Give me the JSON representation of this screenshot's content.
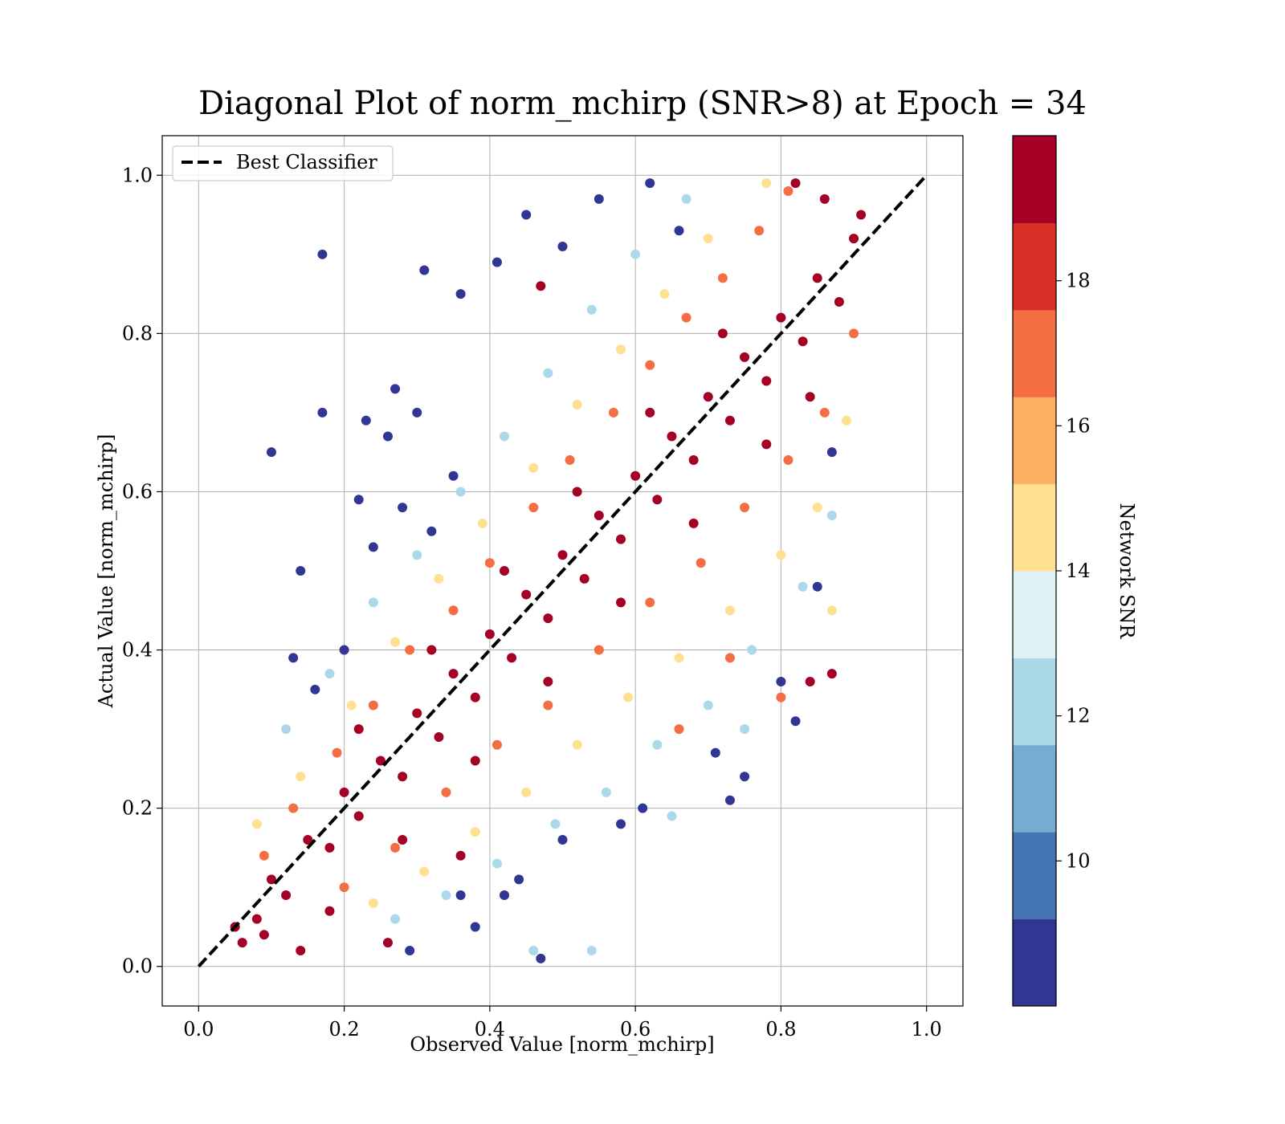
{
  "chart_data": {
    "type": "scatter",
    "title": "Diagonal Plot of norm_mchirp (SNR>8) at Epoch = 34",
    "xlabel": "Observed Value [norm_mchirp]",
    "ylabel": "Actual Value [norm_mchirp]",
    "xlim": [
      -0.05,
      1.05
    ],
    "ylim": [
      -0.05,
      1.05
    ],
    "xticks": [
      "0.0",
      "0.2",
      "0.4",
      "0.6",
      "0.8",
      "1.0"
    ],
    "yticks": [
      "0.0",
      "0.2",
      "0.4",
      "0.6",
      "0.8",
      "1.0"
    ],
    "grid": true,
    "legend": {
      "position": "upper-left",
      "entries": [
        "Best Classifier"
      ]
    },
    "reference_line": {
      "name": "Best Classifier",
      "style": "dashed",
      "color": "#000000",
      "x": [
        0,
        1
      ],
      "y": [
        0,
        1
      ]
    },
    "colorbar": {
      "label": "Network SNR",
      "ticks": [
        "10",
        "12",
        "14",
        "16",
        "18"
      ],
      "tick_values": [
        10,
        12,
        14,
        16,
        18
      ],
      "range": [
        8,
        20
      ],
      "colors": [
        "#313695",
        "#4575b4",
        "#74add1",
        "#abd9e9",
        "#e0f3f8",
        "#fee090",
        "#fdae61",
        "#f46d43",
        "#d73027",
        "#a50026"
      ]
    },
    "series": [
      {
        "snr_band": "high (~19)",
        "color": "#a50026",
        "points": [
          [
            0.05,
            0.05
          ],
          [
            0.08,
            0.06
          ],
          [
            0.1,
            0.11
          ],
          [
            0.12,
            0.09
          ],
          [
            0.15,
            0.16
          ],
          [
            0.18,
            0.15
          ],
          [
            0.2,
            0.22
          ],
          [
            0.22,
            0.19
          ],
          [
            0.25,
            0.26
          ],
          [
            0.28,
            0.24
          ],
          [
            0.3,
            0.32
          ],
          [
            0.33,
            0.29
          ],
          [
            0.35,
            0.37
          ],
          [
            0.38,
            0.34
          ],
          [
            0.4,
            0.42
          ],
          [
            0.43,
            0.39
          ],
          [
            0.45,
            0.47
          ],
          [
            0.48,
            0.44
          ],
          [
            0.5,
            0.52
          ],
          [
            0.53,
            0.49
          ],
          [
            0.55,
            0.57
          ],
          [
            0.58,
            0.54
          ],
          [
            0.6,
            0.62
          ],
          [
            0.63,
            0.59
          ],
          [
            0.65,
            0.67
          ],
          [
            0.68,
            0.64
          ],
          [
            0.7,
            0.72
          ],
          [
            0.73,
            0.69
          ],
          [
            0.75,
            0.77
          ],
          [
            0.78,
            0.74
          ],
          [
            0.8,
            0.82
          ],
          [
            0.83,
            0.79
          ],
          [
            0.85,
            0.87
          ],
          [
            0.88,
            0.84
          ],
          [
            0.9,
            0.92
          ],
          [
            0.86,
            0.97
          ],
          [
            0.82,
            0.99
          ],
          [
            0.91,
            0.95
          ],
          [
            0.72,
            0.8
          ],
          [
            0.62,
            0.7
          ],
          [
            0.52,
            0.6
          ],
          [
            0.42,
            0.5
          ],
          [
            0.32,
            0.4
          ],
          [
            0.22,
            0.3
          ],
          [
            0.68,
            0.56
          ],
          [
            0.58,
            0.46
          ],
          [
            0.48,
            0.36
          ],
          [
            0.38,
            0.26
          ],
          [
            0.28,
            0.16
          ],
          [
            0.18,
            0.07
          ],
          [
            0.78,
            0.66
          ],
          [
            0.84,
            0.72
          ],
          [
            0.87,
            0.37
          ],
          [
            0.84,
            0.36
          ],
          [
            0.47,
            0.86
          ],
          [
            0.09,
            0.04
          ],
          [
            0.14,
            0.02
          ],
          [
            0.06,
            0.03
          ],
          [
            0.36,
            0.14
          ],
          [
            0.26,
            0.03
          ]
        ]
      },
      {
        "snr_band": "mid-high (~17)",
        "color": "#f46d43",
        "points": [
          [
            0.09,
            0.14
          ],
          [
            0.13,
            0.2
          ],
          [
            0.19,
            0.27
          ],
          [
            0.24,
            0.33
          ],
          [
            0.29,
            0.4
          ],
          [
            0.35,
            0.45
          ],
          [
            0.4,
            0.51
          ],
          [
            0.46,
            0.58
          ],
          [
            0.51,
            0.64
          ],
          [
            0.57,
            0.7
          ],
          [
            0.62,
            0.76
          ],
          [
            0.67,
            0.82
          ],
          [
            0.72,
            0.87
          ],
          [
            0.77,
            0.93
          ],
          [
            0.81,
            0.98
          ],
          [
            0.2,
            0.1
          ],
          [
            0.27,
            0.15
          ],
          [
            0.34,
            0.22
          ],
          [
            0.41,
            0.28
          ],
          [
            0.48,
            0.33
          ],
          [
            0.55,
            0.4
          ],
          [
            0.62,
            0.46
          ],
          [
            0.69,
            0.51
          ],
          [
            0.75,
            0.58
          ],
          [
            0.81,
            0.64
          ],
          [
            0.86,
            0.7
          ],
          [
            0.9,
            0.8
          ],
          [
            0.73,
            0.39
          ],
          [
            0.8,
            0.34
          ],
          [
            0.66,
            0.3
          ]
        ]
      },
      {
        "snr_band": "mid (~15)",
        "color": "#fee090",
        "points": [
          [
            0.08,
            0.18
          ],
          [
            0.14,
            0.24
          ],
          [
            0.21,
            0.33
          ],
          [
            0.27,
            0.41
          ],
          [
            0.33,
            0.49
          ],
          [
            0.39,
            0.56
          ],
          [
            0.46,
            0.63
          ],
          [
            0.52,
            0.71
          ],
          [
            0.58,
            0.78
          ],
          [
            0.64,
            0.85
          ],
          [
            0.7,
            0.92
          ],
          [
            0.78,
            0.99
          ],
          [
            0.24,
            0.08
          ],
          [
            0.31,
            0.12
          ],
          [
            0.38,
            0.17
          ],
          [
            0.45,
            0.22
          ],
          [
            0.52,
            0.28
          ],
          [
            0.59,
            0.34
          ],
          [
            0.66,
            0.39
          ],
          [
            0.73,
            0.45
          ],
          [
            0.8,
            0.52
          ],
          [
            0.85,
            0.58
          ],
          [
            0.89,
            0.69
          ],
          [
            0.87,
            0.45
          ]
        ]
      },
      {
        "snr_band": "low-mid (~12)",
        "color": "#abd9e9",
        "points": [
          [
            0.12,
            0.3
          ],
          [
            0.18,
            0.37
          ],
          [
            0.24,
            0.46
          ],
          [
            0.3,
            0.52
          ],
          [
            0.36,
            0.6
          ],
          [
            0.42,
            0.67
          ],
          [
            0.48,
            0.75
          ],
          [
            0.54,
            0.83
          ],
          [
            0.6,
            0.9
          ],
          [
            0.67,
            0.97
          ],
          [
            0.27,
            0.06
          ],
          [
            0.34,
            0.09
          ],
          [
            0.41,
            0.13
          ],
          [
            0.49,
            0.18
          ],
          [
            0.56,
            0.22
          ],
          [
            0.63,
            0.28
          ],
          [
            0.7,
            0.33
          ],
          [
            0.76,
            0.4
          ],
          [
            0.83,
            0.48
          ],
          [
            0.87,
            0.57
          ],
          [
            0.54,
            0.02
          ],
          [
            0.46,
            0.02
          ],
          [
            0.65,
            0.19
          ],
          [
            0.75,
            0.3
          ]
        ]
      },
      {
        "snr_band": "low (~9)",
        "color": "#313695",
        "points": [
          [
            0.1,
            0.65
          ],
          [
            0.17,
            0.7
          ],
          [
            0.17,
            0.9
          ],
          [
            0.14,
            0.5
          ],
          [
            0.23,
            0.69
          ],
          [
            0.26,
            0.67
          ],
          [
            0.27,
            0.73
          ],
          [
            0.22,
            0.59
          ],
          [
            0.31,
            0.88
          ],
          [
            0.36,
            0.85
          ],
          [
            0.41,
            0.89
          ],
          [
            0.45,
            0.95
          ],
          [
            0.5,
            0.91
          ],
          [
            0.55,
            0.97
          ],
          [
            0.62,
            0.99
          ],
          [
            0.66,
            0.93
          ],
          [
            0.3,
            0.7
          ],
          [
            0.35,
            0.62
          ],
          [
            0.2,
            0.4
          ],
          [
            0.16,
            0.35
          ],
          [
            0.13,
            0.39
          ],
          [
            0.24,
            0.53
          ],
          [
            0.28,
            0.58
          ],
          [
            0.32,
            0.55
          ],
          [
            0.29,
            0.02
          ],
          [
            0.38,
            0.05
          ],
          [
            0.47,
            0.01
          ],
          [
            0.44,
            0.11
          ],
          [
            0.5,
            0.16
          ],
          [
            0.58,
            0.18
          ],
          [
            0.61,
            0.2
          ],
          [
            0.73,
            0.21
          ],
          [
            0.75,
            0.24
          ],
          [
            0.8,
            0.36
          ],
          [
            0.82,
            0.31
          ],
          [
            0.85,
            0.48
          ],
          [
            0.87,
            0.65
          ],
          [
            0.71,
            0.27
          ],
          [
            0.36,
            0.09
          ],
          [
            0.42,
            0.09
          ]
        ]
      }
    ]
  }
}
